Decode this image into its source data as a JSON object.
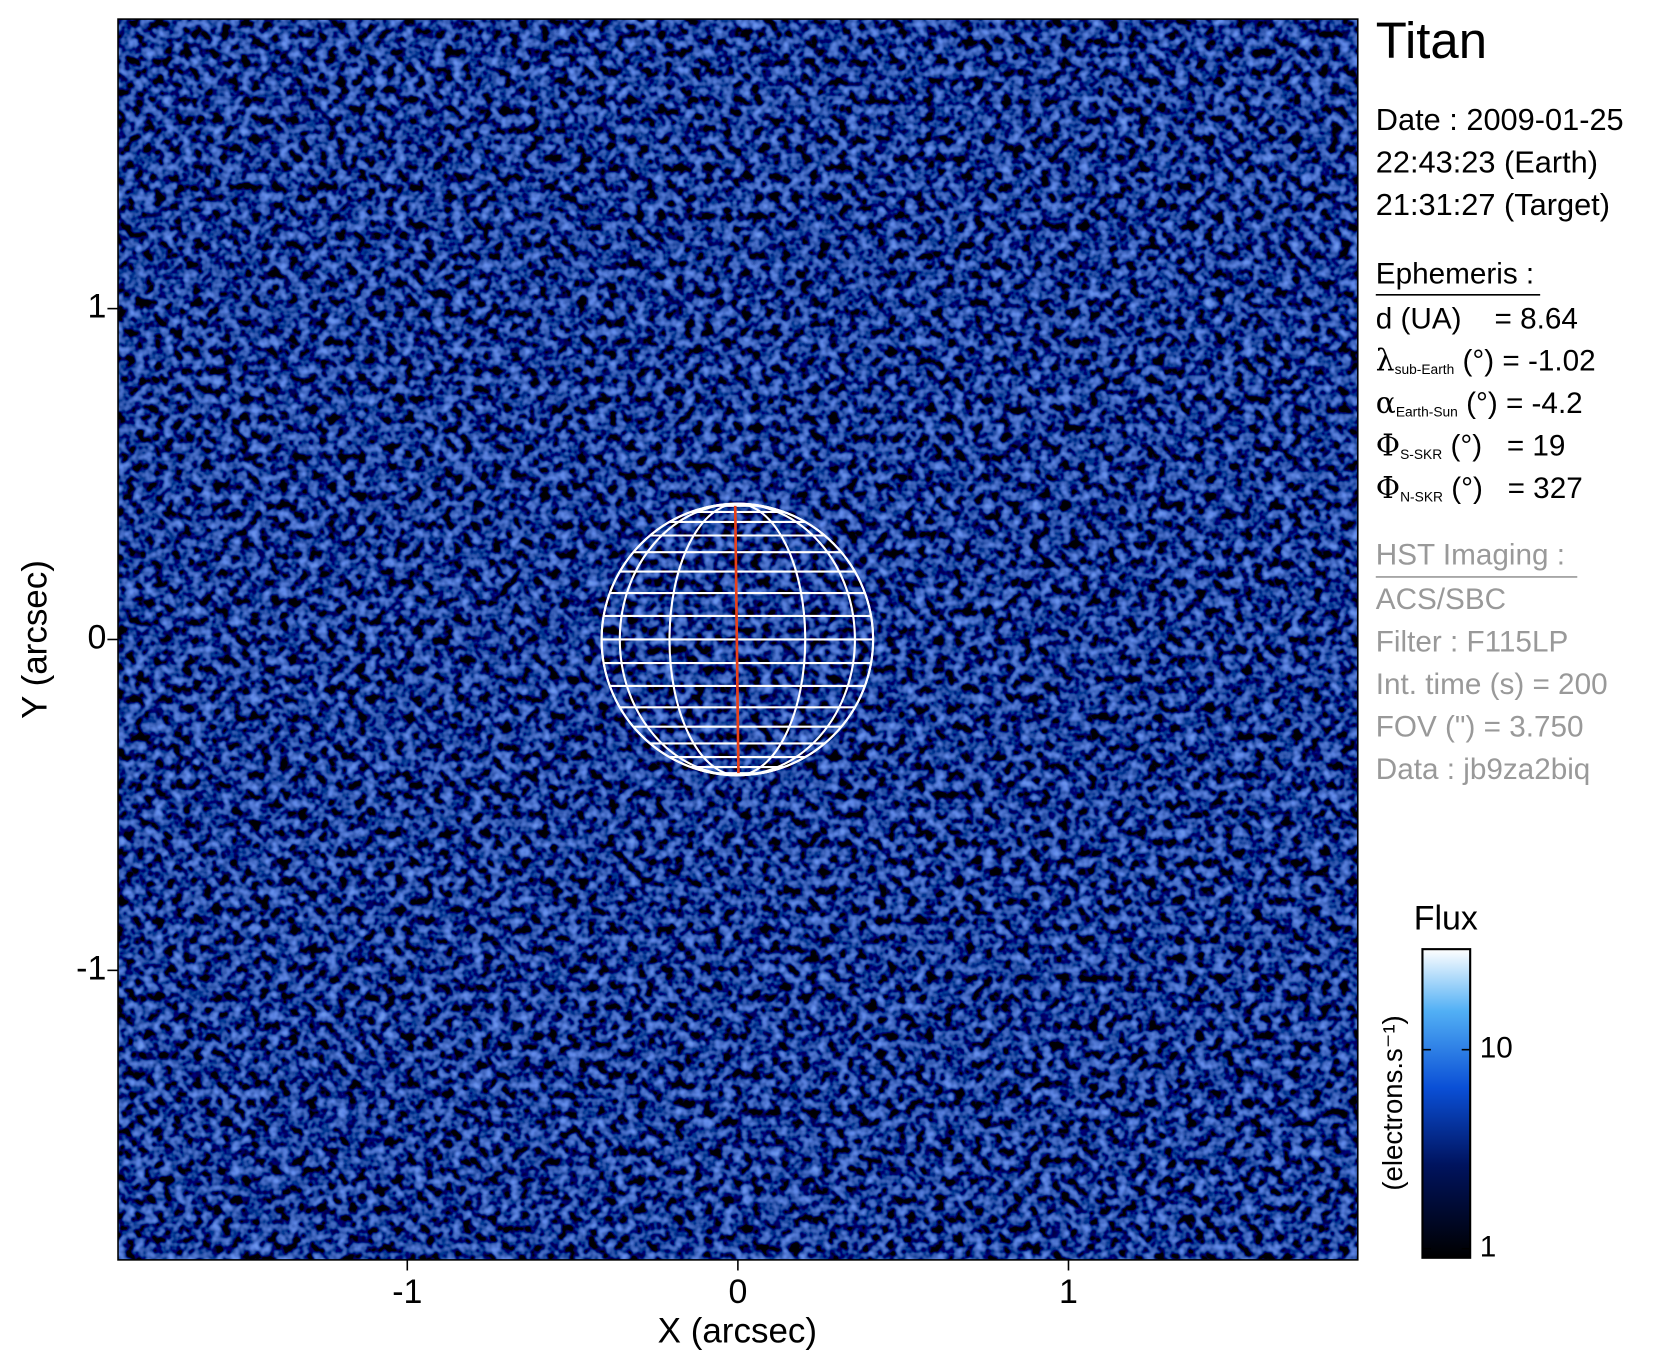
{
  "chart_data": {
    "type": "image",
    "title": "Titan",
    "xlabel": "X (arcsec)",
    "ylabel": "Y (arcsec)",
    "xlim": [
      -1.875,
      1.875
    ],
    "ylim": [
      -1.875,
      1.875
    ],
    "xticks": [
      -1,
      0,
      1
    ],
    "yticks": [
      -1,
      0,
      1
    ],
    "info": {
      "date": [
        "Date : 2009-01-25",
        "22:43:23 (Earth)",
        "21:31:27 (Target)"
      ],
      "ephemeris_title": "Ephemeris :",
      "ephemeris": [
        {
          "text": "d (UA)    = 8.64"
        },
        {
          "symbol": "λ",
          "subscript": "sub-Earth",
          "text": " (°) = -1.02"
        },
        {
          "symbol": "α",
          "subscript": "Earth-Sun",
          "text": " (°) = -4.2"
        },
        {
          "symbol": "Φ",
          "subscript": "S-SKR",
          "text": " (°)   = 19"
        },
        {
          "symbol": "Φ",
          "subscript": "N-SKR",
          "text": " (°)   = 327"
        }
      ],
      "instrument_title": "HST Imaging :",
      "instrument": [
        "ACS/SBC",
        "Filter : F115LP",
        "Int. time (s) = 200",
        "FOV (\") = 3.750",
        "Data : jb9za2biq"
      ]
    },
    "colorbar": {
      "label": "Flux",
      "unit_label": "(electrons.s⁻¹)",
      "log": true,
      "lim": [
        0.9,
        32
      ],
      "ticks": [
        1,
        10
      ]
    }
  }
}
